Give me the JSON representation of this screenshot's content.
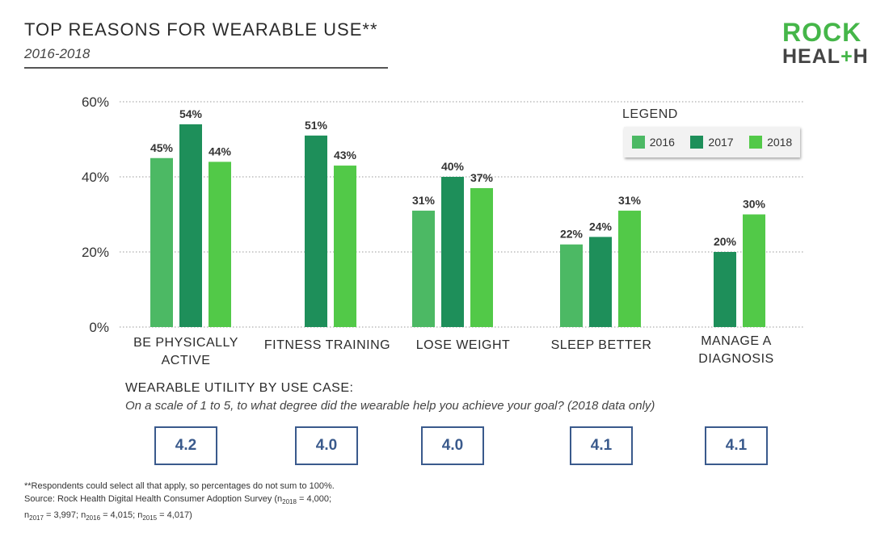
{
  "header": {
    "title": "TOP REASONS FOR WEARABLE USE**",
    "subtitle": "2016-2018"
  },
  "logo": {
    "line1": "ROCK",
    "line2_a": "HEAL",
    "line2_plus": "+",
    "line2_b": "H"
  },
  "legend": {
    "title": "LEGEND",
    "items": [
      {
        "label": "2016",
        "color": "#4cb964"
      },
      {
        "label": "2017",
        "color": "#1e8f5a"
      },
      {
        "label": "2018",
        "color": "#52c948"
      }
    ]
  },
  "chart_data": {
    "type": "bar",
    "categories": [
      "BE PHYSICALLY ACTIVE",
      "FITNESS TRAINING",
      "LOSE WEIGHT",
      "SLEEP BETTER",
      "MANAGE A DIAGNOSIS"
    ],
    "series": [
      {
        "name": "2016",
        "values": [
          45,
          null,
          31,
          22,
          null
        ],
        "color": "#4cb964"
      },
      {
        "name": "2017",
        "values": [
          54,
          51,
          40,
          24,
          20
        ],
        "color": "#1e8f5a"
      },
      {
        "name": "2018",
        "values": [
          44,
          43,
          37,
          31,
          30
        ],
        "color": "#52c948"
      }
    ],
    "ylim": [
      0,
      60
    ],
    "yticks": [
      "0%",
      "20%",
      "40%",
      "60%"
    ],
    "value_suffix": "%",
    "grid": true,
    "legend_position": "top-right"
  },
  "category_labels": [
    {
      "line1": "BE PHYSICALLY",
      "line2": "ACTIVE"
    },
    {
      "line1": "FITNESS TRAINING",
      "line2": ""
    },
    {
      "line1": "LOSE WEIGHT",
      "line2": ""
    },
    {
      "line1": "SLEEP BETTER",
      "line2": ""
    },
    {
      "line1": "MANAGE A",
      "line2": "DIAGNOSIS"
    }
  ],
  "utility": {
    "title": "WEARABLE UTILITY BY USE CASE:",
    "question": "On a scale of 1 to 5, to what degree did the wearable help you achieve your goal? (2018 data only)",
    "scores": [
      "4.2",
      "4.0",
      "4.0",
      "4.1",
      "4.1"
    ]
  },
  "footnote": {
    "line1": "**Respondents could select all that apply, so percentages do not sum to 100%.",
    "line2_prefix": "Source: Rock Health Digital Health Consumer Adoption Survey (n",
    "sub2018": "2018",
    "val2018": " = 4,000;",
    "sub2017": "2017",
    "val2017": " = 3,997; n",
    "sub2016": "2016",
    "val2016": " = 4,015; n",
    "sub2015": "2015",
    "val2015": " = 4,017)"
  }
}
